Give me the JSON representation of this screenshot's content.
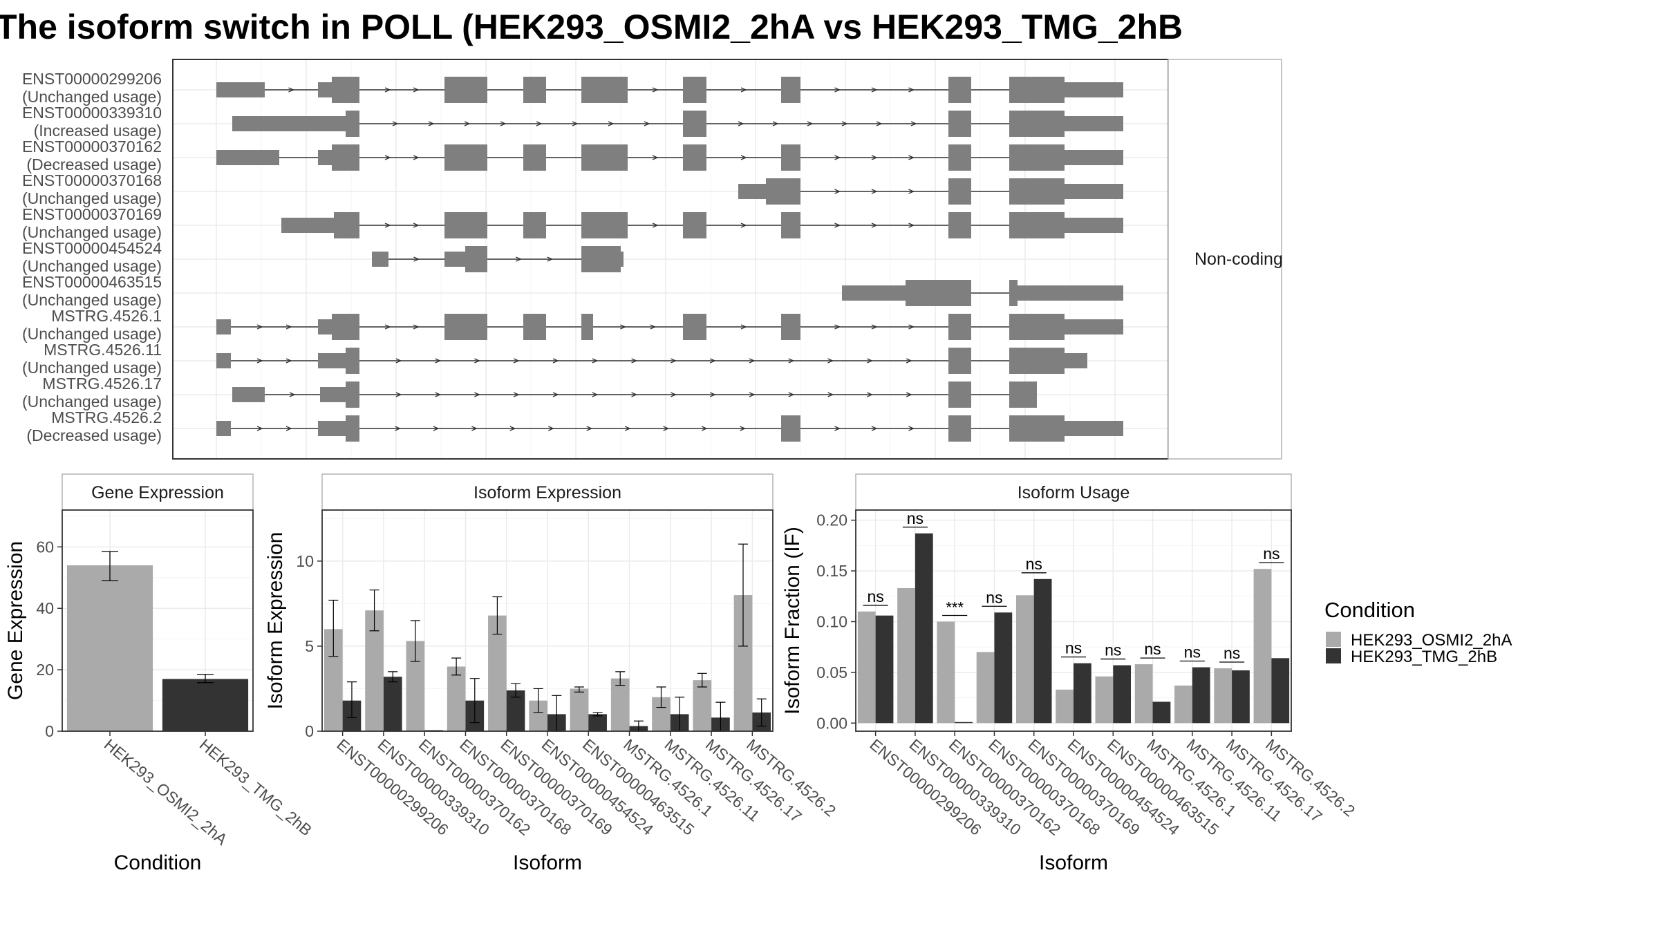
{
  "title": "The isoform switch in POLL (HEK293_OSMI2_2hA vs HEK293_TMG_2hB",
  "colors": {
    "cond_a": "#aaaaaa",
    "cond_b": "#333333",
    "structure": "#7f7f7f",
    "grid": "#ebebeb",
    "panel_border": "#333333",
    "strip_border": "#b3b3b3"
  },
  "chart_data": [
    {
      "type": "structure",
      "facet_label": "Non-coding",
      "transcripts": [
        {
          "id": "ENST00000299206",
          "usage": "(Unchanged usage)"
        },
        {
          "id": "ENST00000339310",
          "usage": "(Increased usage)"
        },
        {
          "id": "ENST00000370162",
          "usage": "(Decreased usage)"
        },
        {
          "id": "ENST00000370168",
          "usage": "(Unchanged usage)"
        },
        {
          "id": "ENST00000370169",
          "usage": "(Unchanged usage)"
        },
        {
          "id": "ENST00000454524",
          "usage": "(Unchanged usage)"
        },
        {
          "id": "ENST00000463515",
          "usage": "(Unchanged usage)"
        },
        {
          "id": "MSTRG.4526.1",
          "usage": "(Unchanged usage)"
        },
        {
          "id": "MSTRG.4526.11",
          "usage": "(Unchanged usage)"
        },
        {
          "id": "MSTRG.4526.17",
          "usage": "(Unchanged usage)"
        },
        {
          "id": "MSTRG.4526.2",
          "usage": "(Decreased usage)"
        }
      ]
    },
    {
      "type": "bar",
      "strip": "Gene Expression",
      "xlabel": "Condition",
      "ylabel": "Gene Expression",
      "ylim": [
        0,
        72
      ],
      "yticks": [
        0,
        20,
        40,
        60
      ],
      "categories": [
        "HEK293_OSMI2_2hA",
        "HEK293_TMG_2hB"
      ],
      "values": [
        54,
        17
      ],
      "err": [
        [
          49,
          58.5
        ],
        [
          15.8,
          18.5
        ]
      ]
    },
    {
      "type": "bar",
      "strip": "Isoform Expression",
      "xlabel": "Isoform",
      "ylabel": "Isoform Expression",
      "ylim": [
        0,
        13
      ],
      "yticks": [
        0,
        5,
        10
      ],
      "categories": [
        "ENST00000299206",
        "ENST00000339310",
        "ENST00000370162",
        "ENST00000370168",
        "ENST00000370169",
        "ENST00000454524",
        "ENST00000463515",
        "MSTRG.4526.1",
        "MSTRG.4526.11",
        "MSTRG.4526.17",
        "MSTRG.4526.2"
      ],
      "series": [
        {
          "values": [
            6.0,
            7.1,
            5.3,
            3.8,
            6.8,
            1.8,
            2.5,
            3.1,
            2.0,
            3.0,
            8.0
          ],
          "err_lo": [
            4.4,
            5.9,
            4.1,
            3.3,
            5.7,
            1.1,
            2.3,
            2.7,
            1.4,
            2.6,
            5.0
          ],
          "err_hi": [
            7.7,
            8.3,
            6.5,
            4.3,
            7.9,
            2.5,
            2.6,
            3.5,
            2.6,
            3.4,
            11.0
          ]
        },
        {
          "values": [
            1.8,
            3.2,
            0.0,
            1.8,
            2.4,
            1.0,
            1.0,
            0.3,
            1.0,
            0.8,
            1.1
          ],
          "err_lo": [
            0.8,
            2.9,
            0.0,
            0.5,
            2.0,
            0.0,
            0.9,
            0.0,
            0.0,
            0.0,
            0.3
          ],
          "err_hi": [
            2.9,
            3.5,
            0.0,
            3.1,
            2.8,
            2.1,
            1.1,
            0.6,
            2.0,
            1.7,
            1.9
          ]
        }
      ]
    },
    {
      "type": "bar",
      "strip": "Isoform Usage",
      "xlabel": "Isoform",
      "ylabel": "Isoform Fraction (IF)",
      "ylim": [
        -0.008,
        0.21
      ],
      "yticks": [
        0.0,
        0.05,
        0.1,
        0.15,
        0.2
      ],
      "ytick_labels": [
        "0.00",
        "0.05",
        "0.10",
        "0.15",
        "0.20"
      ],
      "categories": [
        "ENST00000299206",
        "ENST00000339310",
        "ENST00000370162",
        "ENST00000370168",
        "ENST00000370169",
        "ENST00000454524",
        "ENST00000463515",
        "MSTRG.4526.1",
        "MSTRG.4526.11",
        "MSTRG.4526.17",
        "MSTRG.4526.2"
      ],
      "series": [
        {
          "values": [
            0.11,
            0.133,
            0.1,
            0.07,
            0.126,
            0.033,
            0.046,
            0.058,
            0.037,
            0.054,
            0.152
          ]
        },
        {
          "values": [
            0.106,
            0.187,
            0.0,
            0.109,
            0.142,
            0.059,
            0.057,
            0.021,
            0.055,
            0.052,
            0.064
          ]
        }
      ],
      "significance": [
        "ns",
        "ns",
        "***",
        "ns",
        "ns",
        "ns",
        "ns",
        "ns",
        "ns",
        "ns",
        "ns"
      ]
    }
  ],
  "legend": {
    "title": "Condition",
    "items": [
      "HEK293_OSMI2_2hA",
      "HEK293_TMG_2hB"
    ],
    "position": "right"
  }
}
